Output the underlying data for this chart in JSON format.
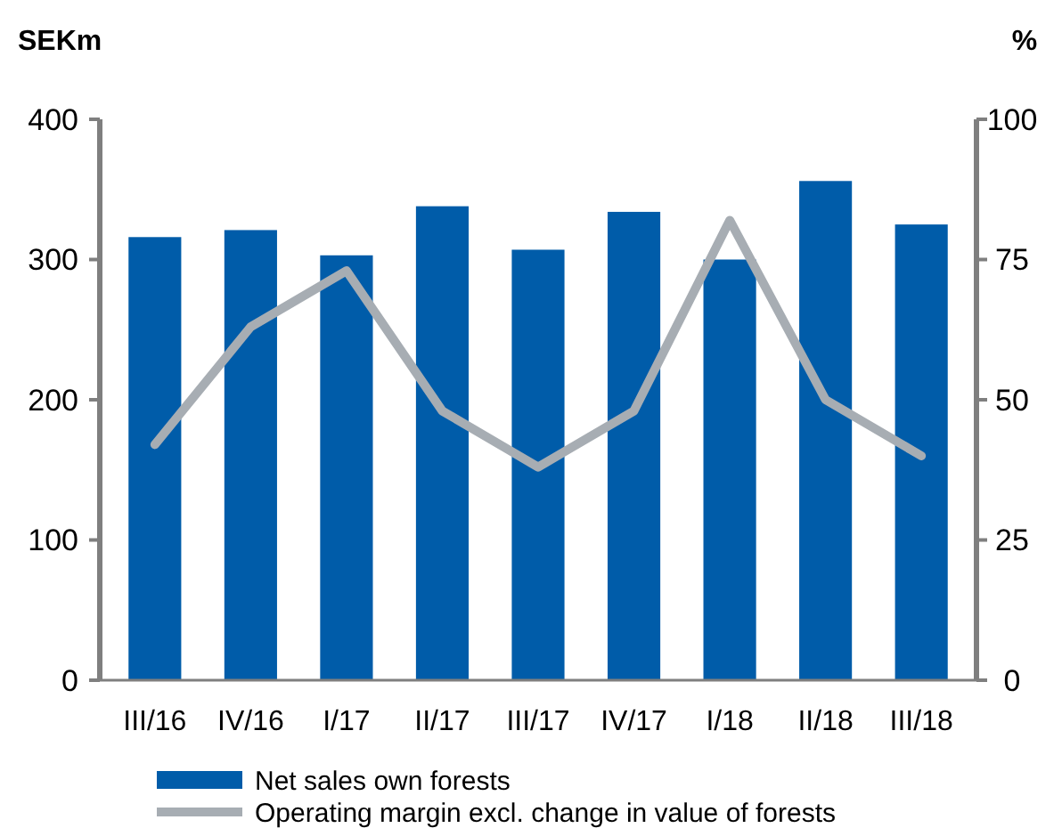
{
  "chart_data": {
    "type": "bar",
    "ylabel": "SEKm",
    "y2label": "%",
    "categories": [
      "III/16",
      "IV/16",
      "I/17",
      "II/17",
      "III/17",
      "IV/17",
      "I/18",
      "II/18",
      "III/18"
    ],
    "series": [
      {
        "name": "Net sales own forests",
        "color": "#005ca9",
        "values": [
          316,
          321,
          303,
          338,
          307,
          334,
          300,
          356,
          325
        ]
      },
      {
        "name": "Operating margin excl. change in value of forests",
        "type": "line",
        "axis": "y2",
        "color": "#a7adb3",
        "values": [
          42,
          63,
          73,
          48,
          38,
          48,
          82,
          50,
          40
        ]
      }
    ],
    "ylim": [
      0,
      400
    ],
    "yticks": [
      0,
      100,
      200,
      300,
      400
    ],
    "y2lim": [
      0,
      100
    ],
    "y2ticks": [
      0,
      25,
      50,
      75,
      100
    ],
    "grid": false,
    "legend": "bottom",
    "marker": "none",
    "line_style": "solid"
  }
}
